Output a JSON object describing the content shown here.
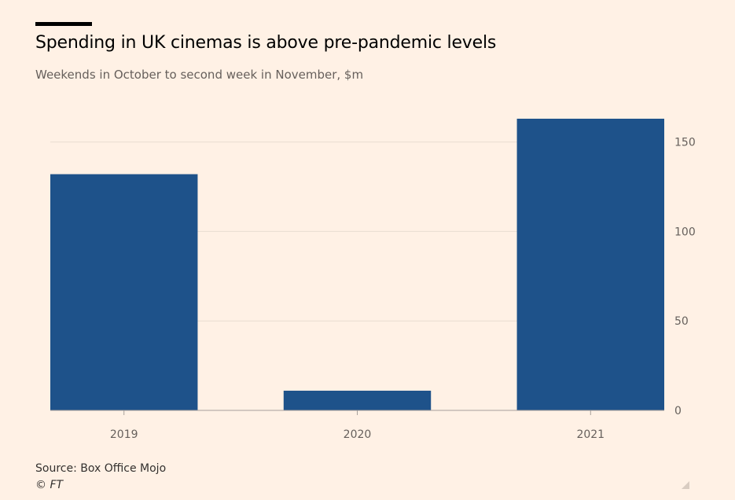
{
  "title": "Spending in UK cinemas is above pre-pandemic levels",
  "subtitle": "Weekends in October to second week in November, $m",
  "source": "Source: Box Office Mojo",
  "copyright": "© FT",
  "colors": {
    "background": "#fff1e5",
    "bar": "#1e528a",
    "grid": "#e9ddd2",
    "axis": "#a7a09b"
  },
  "chart_data": {
    "type": "bar",
    "categories": [
      "2019",
      "2020",
      "2021"
    ],
    "values": [
      132,
      11,
      163
    ],
    "title": "Spending in UK cinemas is above pre-pandemic levels",
    "subtitle": "Weekends in October to second week in November, $m",
    "xlabel": "",
    "ylabel": "",
    "ylim": [
      0,
      163
    ],
    "yticks": [
      0,
      50,
      100,
      150
    ],
    "yaxis_side": "right",
    "grid": true,
    "legend": "none"
  }
}
